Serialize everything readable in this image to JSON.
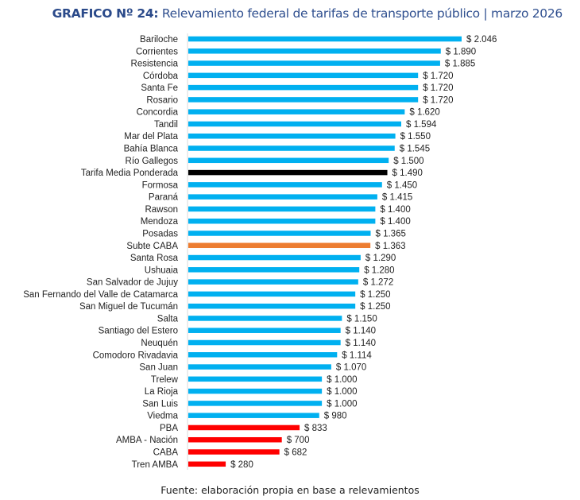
{
  "chart_data": {
    "type": "bar",
    "orientation": "horizontal",
    "title_prefix": "GRAFICO Nº 24:",
    "title": "Relevamiento federal de tarifas de transporte público | marzo 2026",
    "source": "Fuente: elaboración propia en base a relevamientos",
    "value_prefix": "$ ",
    "xlim": [
      0,
      2100
    ],
    "colors": {
      "default": "#00b0f0",
      "average": "#000000",
      "subte": "#ed7d31",
      "amba": "#ff0000"
    },
    "categories": [
      "Bariloche",
      "Corrientes",
      "Resistencia",
      "Córdoba",
      "Santa Fe",
      "Rosario",
      "Concordia",
      "Tandil",
      "Mar del Plata",
      "Bahía Blanca",
      "Río Gallegos",
      "Tarifa Media Ponderada",
      "Formosa",
      "Paraná",
      "Rawson",
      "Mendoza",
      "Posadas",
      "Subte CABA",
      "Santa Rosa",
      "Ushuaia",
      "San Salvador de Jujuy",
      "San Fernando del Valle de Catamarca",
      "San Miguel de Tucumán",
      "Salta",
      "Santiago del Estero",
      "Neuquén",
      "Comodoro Rivadavia",
      "San Juan",
      "Trelew",
      "La Rioja",
      "San Luis",
      "Viedma",
      "PBA",
      "AMBA - Nación",
      "CABA",
      "Tren AMBA"
    ],
    "values": [
      2046,
      1890,
      1885,
      1720,
      1720,
      1720,
      1620,
      1594,
      1550,
      1545,
      1500,
      1490,
      1450,
      1415,
      1400,
      1400,
      1365,
      1363,
      1290,
      1280,
      1272,
      1250,
      1250,
      1150,
      1140,
      1140,
      1114,
      1070,
      1000,
      1000,
      1000,
      980,
      833,
      700,
      682,
      280
    ],
    "labels": [
      "$ 2.046",
      "$ 1.890",
      "$ 1.885",
      "$ 1.720",
      "$ 1.720",
      "$ 1.720",
      "$ 1.620",
      "$ 1.594",
      "$ 1.550",
      "$ 1.545",
      "$ 1.500",
      "$ 1.490",
      "$ 1.450",
      "$ 1.415",
      "$ 1.400",
      "$ 1.400",
      "$ 1.365",
      "$ 1.363",
      "$ 1.290",
      "$ 1.280",
      "$ 1.272",
      "$ 1.250",
      "$ 1.250",
      "$ 1.150",
      "$ 1.140",
      "$ 1.140",
      "$ 1.114",
      "$ 1.070",
      "$ 1.000",
      "$ 1.000",
      "$ 1.000",
      "$ 980",
      "$ 833",
      "$ 700",
      "$ 682",
      "$ 280"
    ],
    "bar_color_keys": [
      "default",
      "default",
      "default",
      "default",
      "default",
      "default",
      "default",
      "default",
      "default",
      "default",
      "default",
      "average",
      "default",
      "default",
      "default",
      "default",
      "default",
      "subte",
      "default",
      "default",
      "default",
      "default",
      "default",
      "default",
      "default",
      "default",
      "default",
      "default",
      "default",
      "default",
      "default",
      "default",
      "amba",
      "amba",
      "amba",
      "amba"
    ]
  }
}
